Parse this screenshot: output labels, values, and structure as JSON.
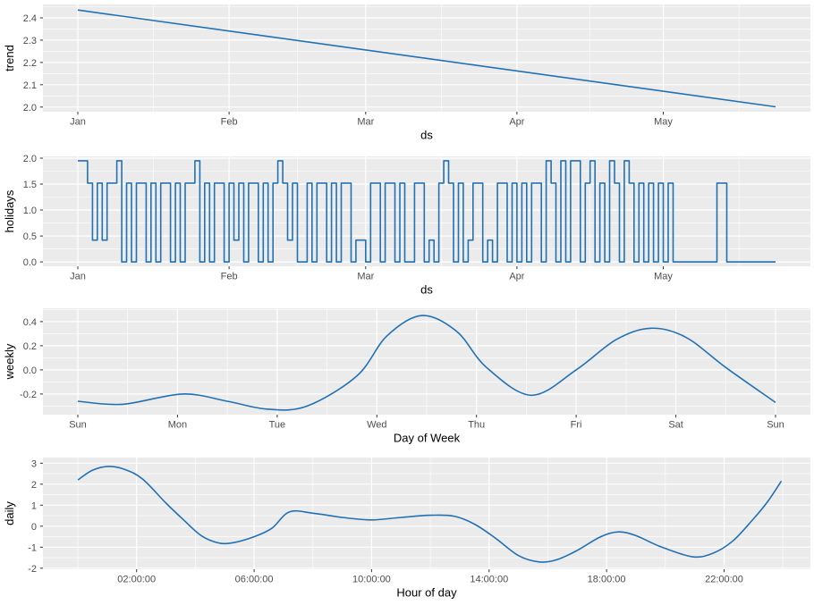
{
  "figure": {
    "background": "#ffffff",
    "panel_bg": "#ebebeb",
    "grid_major_color": "#ffffff",
    "grid_minor_color": "#f7f7f7",
    "line_color": "#2171b5",
    "axis_text_color": "#4d4d4d",
    "axis_title_color": "#000000",
    "tick_mark_color": "#333333"
  },
  "chart_data": [
    {
      "name": "trend",
      "type": "line",
      "title": "",
      "xlabel": "ds",
      "ylabel": "trend",
      "grid": true,
      "legend": false,
      "xdomain": [
        -7.15,
        150.15
      ],
      "ydomain": [
        1.979,
        2.46
      ],
      "xticks": [
        {
          "v": 0,
          "label": "Jan"
        },
        {
          "v": 31,
          "label": "Feb"
        },
        {
          "v": 59,
          "label": "Mar"
        },
        {
          "v": 90,
          "label": "Apr"
        },
        {
          "v": 120,
          "label": "May"
        }
      ],
      "yticks": [
        {
          "v": 2.0,
          "label": "2.0"
        },
        {
          "v": 2.1,
          "label": "2.1"
        },
        {
          "v": 2.2,
          "label": "2.2"
        },
        {
          "v": 2.3,
          "label": "2.3"
        },
        {
          "v": 2.4,
          "label": "2.4"
        }
      ],
      "points": [
        [
          0,
          2.435
        ],
        [
          143,
          2.001
        ]
      ]
    },
    {
      "name": "holidays",
      "type": "step",
      "title": "",
      "xlabel": "ds",
      "ylabel": "holidays",
      "grid": true,
      "legend": false,
      "xdomain": [
        -7.15,
        150.15
      ],
      "ydomain": [
        -0.085,
        2.035
      ],
      "xticks": [
        {
          "v": 0,
          "label": "Jan"
        },
        {
          "v": 31,
          "label": "Feb"
        },
        {
          "v": 59,
          "label": "Mar"
        },
        {
          "v": 90,
          "label": "Apr"
        },
        {
          "v": 120,
          "label": "May"
        }
      ],
      "yticks": [
        {
          "v": 0.0,
          "label": "0.0"
        },
        {
          "v": 0.5,
          "label": "0.5"
        },
        {
          "v": 1.0,
          "label": "1.0"
        },
        {
          "v": 1.5,
          "label": "1.5"
        },
        {
          "v": 2.0,
          "label": "2.0"
        }
      ],
      "x_start": 0,
      "x_step": 1,
      "values": [
        1.95,
        1.95,
        1.52,
        0.42,
        1.52,
        0.42,
        1.52,
        1.52,
        1.95,
        0,
        1.52,
        0,
        1.52,
        1.52,
        0,
        1.52,
        0,
        1.52,
        1.52,
        0,
        1.52,
        0,
        1.52,
        1.52,
        1.95,
        0,
        1.52,
        0,
        1.52,
        1.52,
        0,
        1.52,
        0.42,
        1.52,
        0,
        1.52,
        1.52,
        0,
        1.52,
        0,
        1.52,
        1.95,
        1.52,
        0.42,
        1.52,
        0,
        0,
        1.52,
        0,
        1.52,
        1.52,
        0,
        1.52,
        0,
        1.52,
        1.52,
        0,
        0.42,
        0.42,
        0,
        1.52,
        1.52,
        0,
        1.52,
        1.52,
        0,
        1.52,
        0,
        0,
        1.52,
        1.52,
        0,
        0.42,
        0,
        1.52,
        1.95,
        1.52,
        0,
        1.52,
        0,
        0.42,
        1.52,
        1.52,
        0,
        0.42,
        0,
        1.52,
        1.52,
        0,
        1.52,
        0,
        1.52,
        0,
        1.52,
        1.52,
        0,
        1.95,
        1.52,
        0,
        1.95,
        0,
        1.95,
        1.95,
        0,
        1.52,
        1.95,
        0,
        1.52,
        0,
        1.95,
        1.52,
        0,
        1.95,
        1.52,
        0,
        1.52,
        0,
        1.52,
        0,
        1.52,
        0,
        1.52,
        0,
        0,
        0,
        0,
        0,
        0,
        0,
        0,
        0,
        1.52,
        1.52,
        0,
        0,
        0,
        0,
        0,
        0,
        0,
        0,
        0,
        0,
        0
      ]
    },
    {
      "name": "weekly",
      "type": "smooth",
      "title": "",
      "xlabel": "Day of Week",
      "ylabel": "weekly",
      "grid": true,
      "legend": false,
      "xdomain": [
        -0.35,
        7.35
      ],
      "ydomain": [
        -0.371,
        0.51
      ],
      "xticks": [
        {
          "v": 0,
          "label": "Sun"
        },
        {
          "v": 1,
          "label": "Mon"
        },
        {
          "v": 2,
          "label": "Tue"
        },
        {
          "v": 3,
          "label": "Wed"
        },
        {
          "v": 4,
          "label": "Thu"
        },
        {
          "v": 5,
          "label": "Fri"
        },
        {
          "v": 6,
          "label": "Sat"
        },
        {
          "v": 7,
          "label": "Sun"
        }
      ],
      "yticks": [
        {
          "v": -0.2,
          "label": "-0.2"
        },
        {
          "v": 0.0,
          "label": "0.0"
        },
        {
          "v": 0.2,
          "label": "0.2"
        },
        {
          "v": 0.4,
          "label": "0.4"
        }
      ],
      "points": [
        [
          0,
          -0.26
        ],
        [
          0.45,
          -0.285
        ],
        [
          1.05,
          -0.2
        ],
        [
          1.5,
          -0.26
        ],
        [
          1.9,
          -0.325
        ],
        [
          2.3,
          -0.3
        ],
        [
          2.8,
          -0.05
        ],
        [
          3.1,
          0.28
        ],
        [
          3.45,
          0.45
        ],
        [
          3.8,
          0.32
        ],
        [
          4.1,
          0.02
        ],
        [
          4.55,
          -0.21
        ],
        [
          5.0,
          0.0
        ],
        [
          5.4,
          0.25
        ],
        [
          5.75,
          0.345
        ],
        [
          6.1,
          0.27
        ],
        [
          6.5,
          0.02
        ],
        [
          7.0,
          -0.27
        ]
      ]
    },
    {
      "name": "daily",
      "type": "smooth",
      "title": "",
      "xlabel": "Hour of day",
      "ylabel": "daily",
      "grid": true,
      "legend": false,
      "xdomain": [
        -1.19,
        24.94
      ],
      "ydomain": [
        -2.05,
        3.27
      ],
      "xticks": [
        {
          "v": 2,
          "label": "02:00:00"
        },
        {
          "v": 6,
          "label": "06:00:00"
        },
        {
          "v": 10,
          "label": "10:00:00"
        },
        {
          "v": 14,
          "label": "14:00:00"
        },
        {
          "v": 18,
          "label": "18:00:00"
        },
        {
          "v": 22,
          "label": "22:00:00"
        }
      ],
      "yticks": [
        {
          "v": -2,
          "label": "-2"
        },
        {
          "v": -1,
          "label": "-1"
        },
        {
          "v": 0,
          "label": "0"
        },
        {
          "v": 1,
          "label": "1"
        },
        {
          "v": 2,
          "label": "2"
        },
        {
          "v": 3,
          "label": "3"
        }
      ],
      "points": [
        [
          0,
          2.2
        ],
        [
          0.5,
          2.67
        ],
        [
          1.05,
          2.85
        ],
        [
          1.6,
          2.7
        ],
        [
          2.2,
          2.25
        ],
        [
          3.0,
          1.1
        ],
        [
          3.6,
          0.3
        ],
        [
          4.2,
          -0.45
        ],
        [
          4.8,
          -0.8
        ],
        [
          5.3,
          -0.78
        ],
        [
          6.0,
          -0.5
        ],
        [
          6.6,
          -0.1
        ],
        [
          7.2,
          0.68
        ],
        [
          8.0,
          0.62
        ],
        [
          9.0,
          0.42
        ],
        [
          10.0,
          0.3
        ],
        [
          11.0,
          0.42
        ],
        [
          12.0,
          0.52
        ],
        [
          12.8,
          0.48
        ],
        [
          13.5,
          0.1
        ],
        [
          14.2,
          -0.55
        ],
        [
          15.0,
          -1.4
        ],
        [
          15.7,
          -1.7
        ],
        [
          16.3,
          -1.6
        ],
        [
          17.0,
          -1.15
        ],
        [
          17.8,
          -0.5
        ],
        [
          18.4,
          -0.27
        ],
        [
          19.0,
          -0.45
        ],
        [
          19.8,
          -0.95
        ],
        [
          20.9,
          -1.45
        ],
        [
          21.6,
          -1.3
        ],
        [
          22.3,
          -0.7
        ],
        [
          23.0,
          0.35
        ],
        [
          23.5,
          1.2
        ],
        [
          23.95,
          2.15
        ]
      ]
    }
  ]
}
